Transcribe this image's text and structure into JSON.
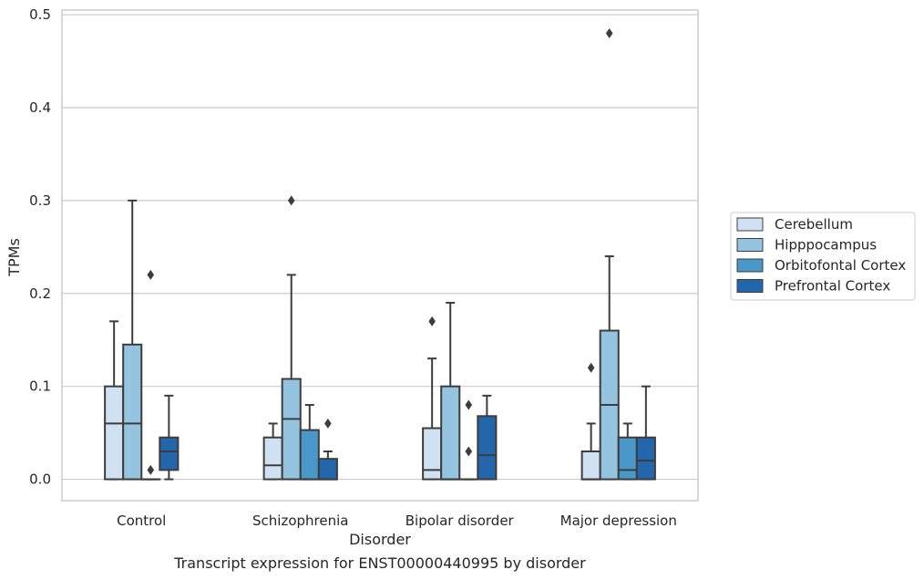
{
  "chart_data": {
    "type": "boxplot",
    "caption": "Transcript expression for ENST00000440995 by disorder",
    "xlabel": "Disorder",
    "ylabel": "TPMs",
    "ylim": [
      -0.023,
      0.505
    ],
    "yticks": [
      0.0,
      0.1,
      0.2,
      0.3,
      0.4,
      0.5
    ],
    "ytick_labels": [
      "0.0",
      "0.1",
      "0.2",
      "0.3",
      "0.4",
      "0.5"
    ],
    "grid": "horizontal",
    "legend_position": "right",
    "categories": [
      "Control",
      "Schizophrenia",
      "Bipolar disorder",
      "Major depression"
    ],
    "series": [
      {
        "name": "Cerebellum",
        "color": "#d0e1f2",
        "boxes": [
          {
            "whislo": 0.0,
            "q1": 0.0,
            "med": 0.06,
            "q3": 0.1,
            "whishi": 0.17,
            "fliers": []
          },
          {
            "whislo": 0.0,
            "q1": 0.0,
            "med": 0.015,
            "q3": 0.045,
            "whishi": 0.06,
            "fliers": []
          },
          {
            "whislo": 0.0,
            "q1": 0.0,
            "med": 0.01,
            "q3": 0.055,
            "whishi": 0.13,
            "fliers": [
              0.17
            ]
          },
          {
            "whislo": 0.0,
            "q1": 0.0,
            "med": 0.0,
            "q3": 0.03,
            "whishi": 0.06,
            "fliers": [
              0.12
            ]
          }
        ]
      },
      {
        "name": "Hipppocampus",
        "color": "#94c4df",
        "boxes": [
          {
            "whislo": 0.0,
            "q1": 0.0,
            "med": 0.06,
            "q3": 0.145,
            "whishi": 0.3,
            "fliers": []
          },
          {
            "whislo": 0.0,
            "q1": 0.0,
            "med": 0.065,
            "q3": 0.108,
            "whishi": 0.22,
            "fliers": [
              0.3
            ]
          },
          {
            "whislo": 0.0,
            "q1": 0.0,
            "med": 0.0,
            "q3": 0.1,
            "whishi": 0.19,
            "fliers": []
          },
          {
            "whislo": 0.0,
            "q1": 0.0,
            "med": 0.08,
            "q3": 0.16,
            "whishi": 0.24,
            "fliers": [
              0.48
            ]
          }
        ]
      },
      {
        "name": "Orbitofontal Cortex",
        "color": "#4a98c9",
        "boxes": [
          {
            "whislo": 0.0,
            "q1": 0.0,
            "med": 0.0,
            "q3": 0.0,
            "whishi": 0.0,
            "fliers": [
              0.01,
              0.22
            ]
          },
          {
            "whislo": 0.0,
            "q1": 0.0,
            "med": 0.0,
            "q3": 0.053,
            "whishi": 0.08,
            "fliers": []
          },
          {
            "whislo": 0.0,
            "q1": 0.0,
            "med": 0.0,
            "q3": 0.0,
            "whishi": 0.0,
            "fliers": [
              0.03,
              0.08
            ]
          },
          {
            "whislo": 0.0,
            "q1": 0.0,
            "med": 0.01,
            "q3": 0.045,
            "whishi": 0.06,
            "fliers": []
          }
        ]
      },
      {
        "name": "Prefrontal Cortex",
        "color": "#2366ac",
        "boxes": [
          {
            "whislo": 0.0,
            "q1": 0.01,
            "med": 0.03,
            "q3": 0.045,
            "whishi": 0.09,
            "fliers": []
          },
          {
            "whislo": 0.0,
            "q1": 0.0,
            "med": 0.0,
            "q3": 0.022,
            "whishi": 0.03,
            "fliers": [
              0.06
            ]
          },
          {
            "whislo": 0.0,
            "q1": 0.0,
            "med": 0.026,
            "q3": 0.068,
            "whishi": 0.09,
            "fliers": []
          },
          {
            "whislo": 0.0,
            "q1": 0.0,
            "med": 0.02,
            "q3": 0.045,
            "whishi": 0.1,
            "fliers": []
          }
        ]
      }
    ]
  }
}
